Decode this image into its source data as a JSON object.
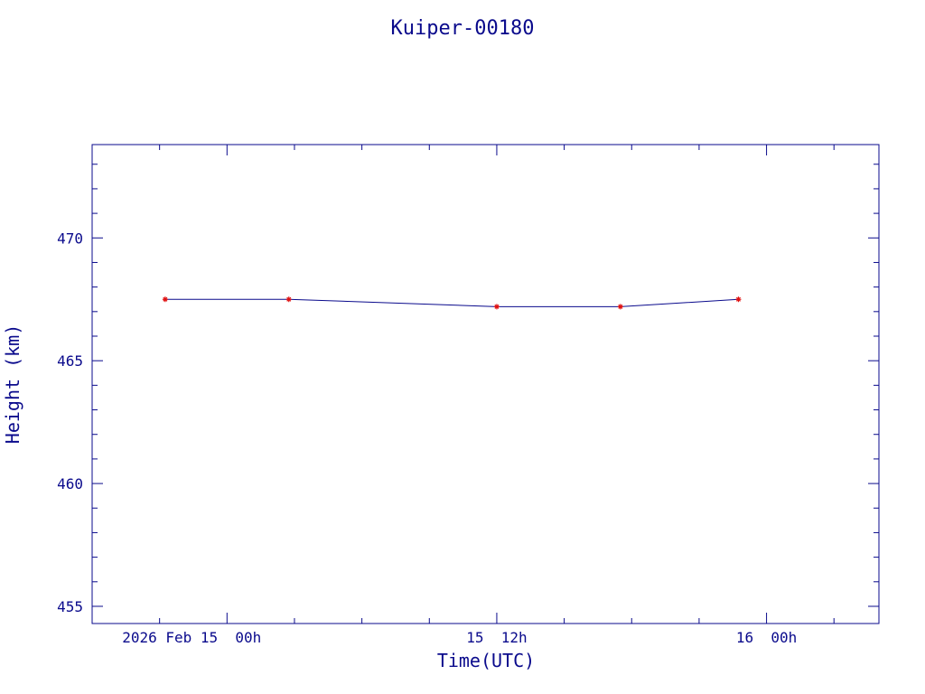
{
  "colors": {
    "axes": "#0a0a8c",
    "line": "#0a0a8c",
    "marker": "#e01010",
    "background": "#ffffff"
  },
  "chart_data": {
    "type": "line",
    "title": "Kuiper-00180",
    "xlabel": "Time(UTC)",
    "ylabel": "Height (km)",
    "x_unit": "UTC",
    "xlim": [
      "2026-02-14T18:00",
      "2026-02-16T05:00"
    ],
    "ylim": [
      454.3,
      473.8
    ],
    "y_ticks": [
      455,
      460,
      465,
      470
    ],
    "y_tick_labels": [
      "455",
      "460",
      "465",
      "470"
    ],
    "x_ticks": [
      "2026-02-15T00:00",
      "2026-02-15T12:00",
      "2026-02-16T00:00"
    ],
    "x_tick_labels": [
      "2026 Feb 15  00h",
      "15  12h",
      "16  00h"
    ],
    "x_minor_step_hours": 3,
    "y_minor_step": 1,
    "grid": false,
    "markers": "asterisk",
    "series": [
      {
        "x": [
          "2026-02-14T21:15",
          "2026-02-15T02:45",
          "2026-02-15T12:00",
          "2026-02-15T17:30",
          "2026-02-15T22:45"
        ],
        "y": [
          467.5,
          467.5,
          467.2,
          467.2,
          467.5
        ]
      }
    ]
  }
}
